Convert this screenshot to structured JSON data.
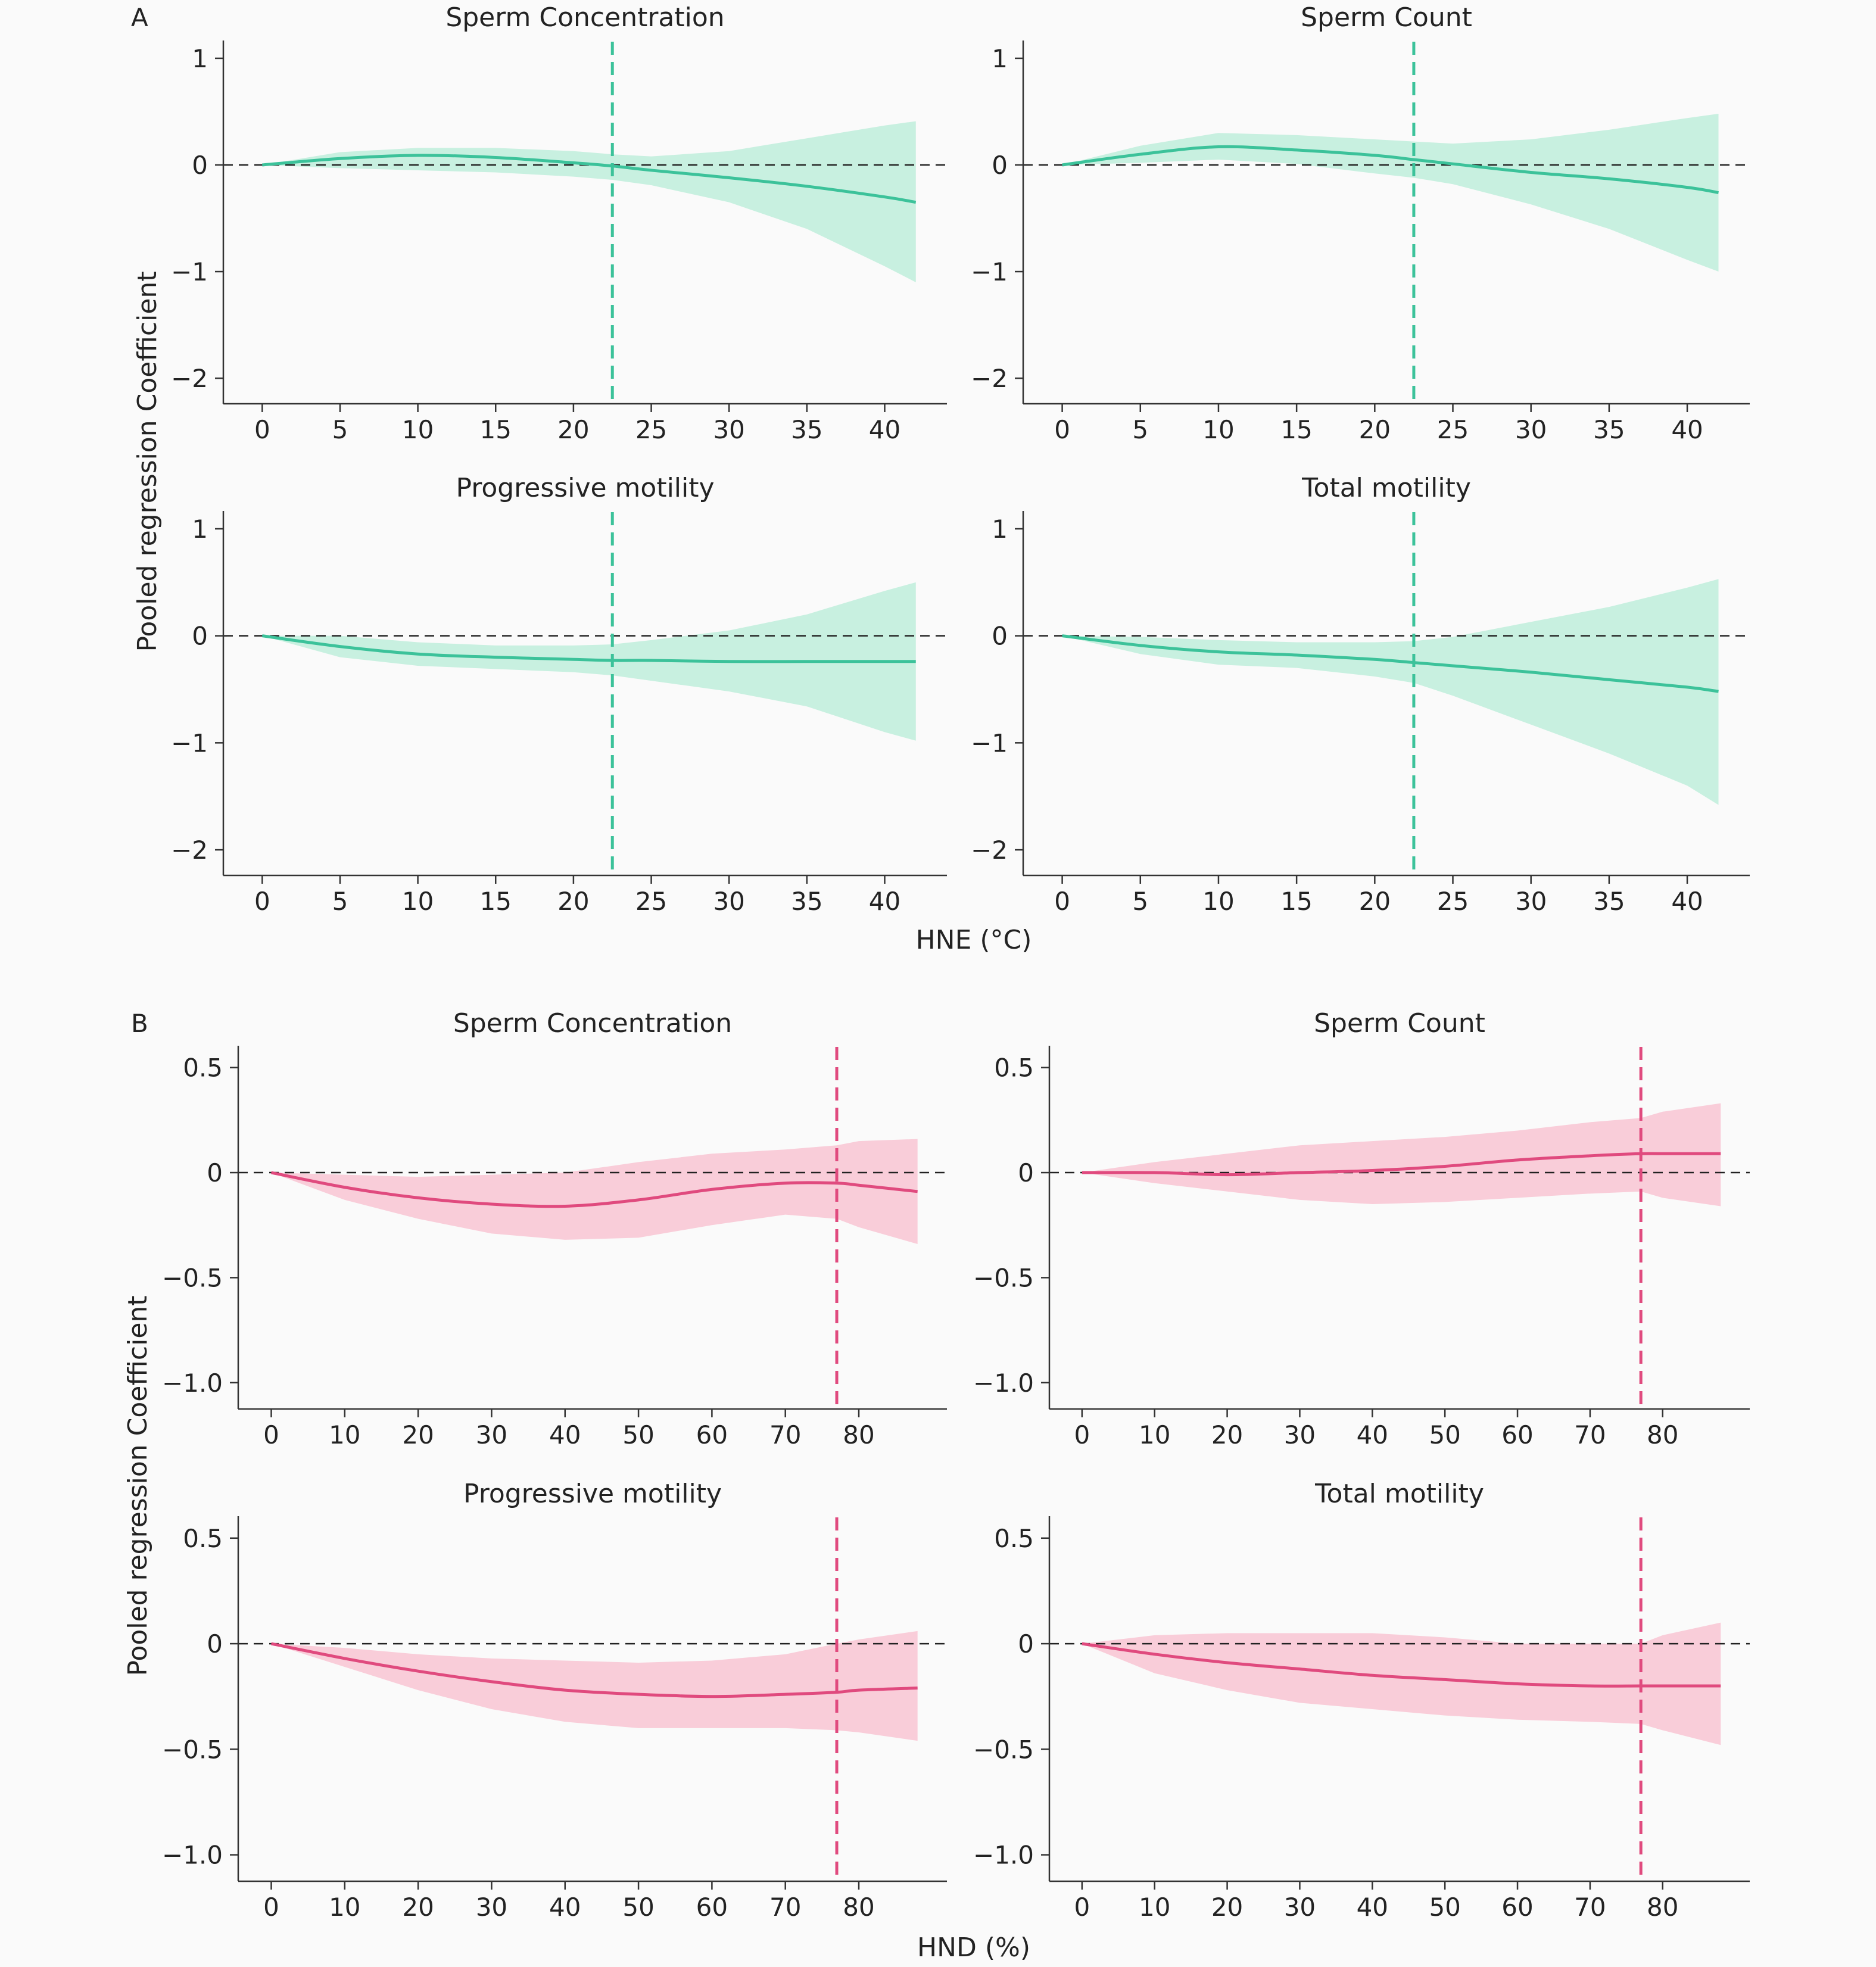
{
  "figure": {
    "panel_letters": [
      "A",
      "B"
    ],
    "ylabel": "Pooled regression Coefficient",
    "xlabel_A": "HNE (°C)",
    "xlabel_B": "HND (%)"
  },
  "colors": {
    "green_line": "#3cc29a",
    "green_band": "#c8f0e0",
    "pink_line": "#e04a7e",
    "pink_band": "#f9cdd9",
    "zero_line": "#222222",
    "axis": "#333333"
  },
  "chart_data": [
    {
      "type": "line",
      "group": "A",
      "title": "Sperm Concentration",
      "xticks": [
        0,
        5,
        10,
        15,
        20,
        25,
        30,
        35,
        40
      ],
      "yticks": [
        1,
        0,
        -1,
        -2
      ],
      "ytick_labels": [
        "1",
        "0",
        "−1",
        "−2"
      ],
      "xlim": [
        -2.5,
        44
      ],
      "ylim": [
        -2.15,
        1.1
      ],
      "vline_x": 22.5,
      "x": [
        0,
        5,
        10,
        15,
        20,
        22.5,
        25,
        30,
        35,
        40,
        42
      ],
      "y": [
        0,
        0.06,
        0.09,
        0.07,
        0.02,
        -0.01,
        -0.05,
        -0.12,
        -0.2,
        -0.3,
        -0.35
      ],
      "lower": [
        0,
        -0.03,
        -0.05,
        -0.07,
        -0.11,
        -0.14,
        -0.19,
        -0.35,
        -0.6,
        -0.95,
        -1.1
      ],
      "upper": [
        0,
        0.12,
        0.16,
        0.16,
        0.13,
        0.1,
        0.08,
        0.13,
        0.25,
        0.37,
        0.41
      ]
    },
    {
      "type": "line",
      "group": "A",
      "title": "Sperm Count",
      "xticks": [
        0,
        5,
        10,
        15,
        20,
        25,
        30,
        35,
        40
      ],
      "yticks": [
        1,
        0,
        -1,
        -2
      ],
      "ytick_labels": [
        "1",
        "0",
        "−1",
        "−2"
      ],
      "xlim": [
        -2.5,
        44
      ],
      "ylim": [
        -2.15,
        1.1
      ],
      "vline_x": 22.5,
      "x": [
        0,
        5,
        10,
        15,
        20,
        22.5,
        25,
        30,
        35,
        40,
        42
      ],
      "y": [
        0,
        0.1,
        0.17,
        0.14,
        0.09,
        0.05,
        0.01,
        -0.07,
        -0.13,
        -0.21,
        -0.26
      ],
      "lower": [
        0,
        0.02,
        0.05,
        0.01,
        -0.08,
        -0.12,
        -0.18,
        -0.37,
        -0.6,
        -0.89,
        -1.0
      ],
      "upper": [
        0,
        0.18,
        0.3,
        0.28,
        0.24,
        0.22,
        0.2,
        0.24,
        0.33,
        0.44,
        0.48
      ]
    },
    {
      "type": "line",
      "group": "A",
      "title": "Progressive motility",
      "xticks": [
        0,
        5,
        10,
        15,
        20,
        25,
        30,
        35,
        40
      ],
      "yticks": [
        1,
        0,
        -1,
        -2
      ],
      "ytick_labels": [
        "1",
        "0",
        "−1",
        "−2"
      ],
      "xlim": [
        -2.5,
        44
      ],
      "ylim": [
        -2.15,
        1.1
      ],
      "vline_x": 22.5,
      "x": [
        0,
        5,
        10,
        15,
        20,
        22.5,
        25,
        30,
        35,
        40,
        42
      ],
      "y": [
        0,
        -0.1,
        -0.17,
        -0.2,
        -0.22,
        -0.23,
        -0.23,
        -0.24,
        -0.24,
        -0.24,
        -0.24
      ],
      "lower": [
        0,
        -0.2,
        -0.28,
        -0.31,
        -0.34,
        -0.37,
        -0.42,
        -0.52,
        -0.66,
        -0.9,
        -0.98
      ],
      "upper": [
        0,
        0,
        -0.06,
        -0.09,
        -0.09,
        -0.08,
        -0.04,
        0.05,
        0.2,
        0.42,
        0.5
      ]
    },
    {
      "type": "line",
      "group": "A",
      "title": "Total motility",
      "xticks": [
        0,
        5,
        10,
        15,
        20,
        25,
        30,
        35,
        40
      ],
      "yticks": [
        1,
        0,
        -1,
        -2
      ],
      "ytick_labels": [
        "1",
        "0",
        "−1",
        "−2"
      ],
      "xlim": [
        -2.5,
        44
      ],
      "ylim": [
        -2.15,
        1.1
      ],
      "vline_x": 22.5,
      "x": [
        0,
        5,
        10,
        15,
        20,
        22.5,
        25,
        30,
        35,
        40,
        42
      ],
      "y": [
        0,
        -0.09,
        -0.15,
        -0.18,
        -0.22,
        -0.25,
        -0.28,
        -0.34,
        -0.41,
        -0.48,
        -0.52
      ],
      "lower": [
        0,
        -0.17,
        -0.27,
        -0.3,
        -0.38,
        -0.44,
        -0.56,
        -0.83,
        -1.1,
        -1.4,
        -1.58
      ],
      "upper": [
        0,
        -0.01,
        -0.04,
        -0.06,
        -0.06,
        -0.05,
        -0.01,
        0.13,
        0.27,
        0.45,
        0.53
      ]
    },
    {
      "type": "line",
      "group": "B",
      "title": "Sperm Concentration",
      "xticks": [
        0,
        10,
        20,
        30,
        40,
        50,
        60,
        70,
        80
      ],
      "yticks": [
        0.5,
        0,
        -0.5,
        -1.0
      ],
      "ytick_labels": [
        "0.5",
        "0",
        "−0.5",
        "−1.0"
      ],
      "xlim": [
        -4.5,
        92
      ],
      "ylim": [
        -1.08,
        0.57
      ],
      "vline_x": 77,
      "x": [
        0,
        10,
        20,
        30,
        40,
        50,
        60,
        70,
        77,
        80,
        88
      ],
      "y": [
        0,
        -0.07,
        -0.12,
        -0.15,
        -0.16,
        -0.13,
        -0.08,
        -0.05,
        -0.05,
        -0.06,
        -0.09
      ],
      "lower": [
        0,
        -0.13,
        -0.22,
        -0.29,
        -0.32,
        -0.31,
        -0.25,
        -0.2,
        -0.22,
        -0.26,
        -0.34
      ],
      "upper": [
        0,
        -0.01,
        -0.02,
        -0.01,
        0.0,
        0.05,
        0.09,
        0.11,
        0.13,
        0.15,
        0.16
      ]
    },
    {
      "type": "line",
      "group": "B",
      "title": "Sperm Count",
      "xticks": [
        0,
        10,
        20,
        30,
        40,
        50,
        60,
        70,
        80
      ],
      "yticks": [
        0.5,
        0,
        -0.5,
        -1.0
      ],
      "ytick_labels": [
        "0.5",
        "0",
        "−0.5",
        "−1.0"
      ],
      "xlim": [
        -4.5,
        92
      ],
      "ylim": [
        -1.08,
        0.57
      ],
      "vline_x": 77,
      "x": [
        0,
        10,
        20,
        30,
        40,
        50,
        60,
        70,
        77,
        80,
        88
      ],
      "y": [
        0,
        0,
        -0.01,
        0,
        0.01,
        0.03,
        0.06,
        0.08,
        0.09,
        0.09,
        0.09
      ],
      "lower": [
        0,
        -0.05,
        -0.09,
        -0.13,
        -0.15,
        -0.14,
        -0.12,
        -0.1,
        -0.09,
        -0.12,
        -0.16
      ],
      "upper": [
        0,
        0.05,
        0.09,
        0.13,
        0.15,
        0.17,
        0.2,
        0.24,
        0.26,
        0.29,
        0.33
      ]
    },
    {
      "type": "line",
      "group": "B",
      "title": "Progressive motility",
      "xticks": [
        0,
        10,
        20,
        30,
        40,
        50,
        60,
        70,
        80
      ],
      "yticks": [
        0.5,
        0,
        -0.5,
        -1.0
      ],
      "ytick_labels": [
        "0.5",
        "0",
        "−0.5",
        "−1.0"
      ],
      "xlim": [
        -4.5,
        92
      ],
      "ylim": [
        -1.08,
        0.57
      ],
      "vline_x": 77,
      "x": [
        0,
        10,
        20,
        30,
        40,
        50,
        60,
        70,
        77,
        80,
        88
      ],
      "y": [
        0,
        -0.07,
        -0.13,
        -0.18,
        -0.22,
        -0.24,
        -0.25,
        -0.24,
        -0.23,
        -0.22,
        -0.21
      ],
      "lower": [
        0,
        -0.11,
        -0.22,
        -0.31,
        -0.37,
        -0.4,
        -0.4,
        -0.4,
        -0.41,
        -0.42,
        -0.46
      ],
      "upper": [
        0,
        -0.02,
        -0.05,
        -0.07,
        -0.08,
        -0.09,
        -0.08,
        -0.05,
        0,
        0.02,
        0.06
      ]
    },
    {
      "type": "line",
      "group": "B",
      "title": "Total motility",
      "xticks": [
        0,
        10,
        20,
        30,
        40,
        50,
        60,
        70,
        80
      ],
      "yticks": [
        0.5,
        0,
        -0.5,
        -1.0
      ],
      "ytick_labels": [
        "0.5",
        "0",
        "−0.5",
        "−1.0"
      ],
      "xlim": [
        -4.5,
        92
      ],
      "ylim": [
        -1.08,
        0.57
      ],
      "vline_x": 77,
      "x": [
        0,
        10,
        20,
        30,
        40,
        50,
        60,
        70,
        77,
        80,
        88
      ],
      "y": [
        0,
        -0.05,
        -0.09,
        -0.12,
        -0.15,
        -0.17,
        -0.19,
        -0.2,
        -0.2,
        -0.2,
        -0.2
      ],
      "lower": [
        0,
        -0.14,
        -0.22,
        -0.28,
        -0.31,
        -0.34,
        -0.36,
        -0.37,
        -0.38,
        -0.41,
        -0.48
      ],
      "upper": [
        0,
        0.04,
        0.05,
        0.05,
        0.05,
        0.03,
        0.0,
        0,
        0,
        0.04,
        0.1
      ]
    }
  ]
}
